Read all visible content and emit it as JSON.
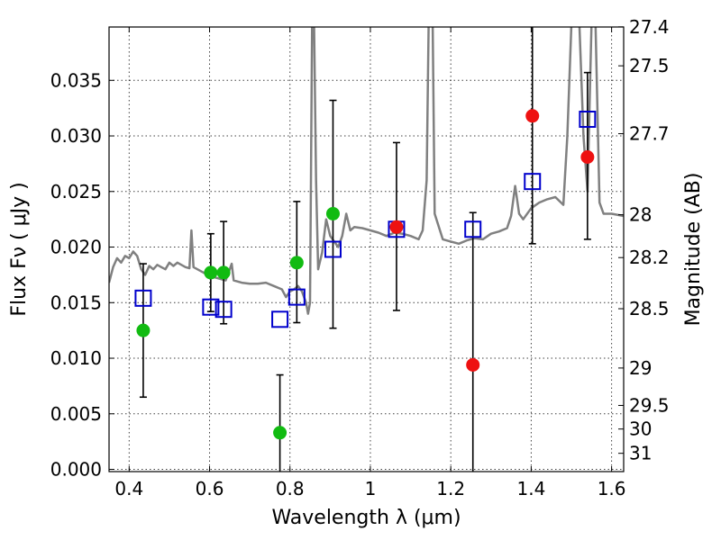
{
  "chart_data": {
    "type": "scatter",
    "xlabel": "Wavelength  λ (μm)",
    "ylabel": "Flux  Fν  ( μJy )",
    "y2label": "Magnitude (AB)",
    "xlim": [
      0.35,
      1.63
    ],
    "ylim": [
      -0.0002,
      0.0398
    ],
    "xticks": [
      0.4,
      0.6,
      0.8,
      1.0,
      1.2,
      1.4,
      1.6
    ],
    "xtick_labels": [
      "0.4",
      "0.6",
      "0.8",
      "1",
      "1.2",
      "1.4",
      "1.6"
    ],
    "yticks": [
      0.0,
      0.005,
      0.01,
      0.015,
      0.02,
      0.025,
      0.03,
      0.035
    ],
    "ytick_labels": [
      "0.000",
      "0.005",
      "0.010",
      "0.015",
      "0.020",
      "0.025",
      "0.030",
      "0.035"
    ],
    "mag_ticks": [
      {
        "label": "27.4",
        "mag": 27.4
      },
      {
        "label": "27.5",
        "mag": 27.5
      },
      {
        "label": "27.7",
        "mag": 27.7
      },
      {
        "label": "28",
        "mag": 28.0
      },
      {
        "label": "28.2",
        "mag": 28.2
      },
      {
        "label": "28.5",
        "mag": 28.5
      },
      {
        "label": "29",
        "mag": 29.0
      },
      {
        "label": "29.5",
        "mag": 29.5
      },
      {
        "label": "30",
        "mag": 30.0
      },
      {
        "label": "31",
        "mag": 31.0
      }
    ],
    "grid": true,
    "colors": {
      "spectrum": "#808080",
      "model": "#0000cc",
      "green": "#11bb11",
      "red": "#ee1111",
      "errorbar": "#000000"
    },
    "spectrum": {
      "name": "",
      "points": [
        [
          0.35,
          0.0168
        ],
        [
          0.36,
          0.0182
        ],
        [
          0.37,
          0.019
        ],
        [
          0.38,
          0.0186
        ],
        [
          0.39,
          0.0192
        ],
        [
          0.4,
          0.019
        ],
        [
          0.41,
          0.0196
        ],
        [
          0.42,
          0.0192
        ],
        [
          0.43,
          0.018
        ],
        [
          0.44,
          0.0175
        ],
        [
          0.45,
          0.0183
        ],
        [
          0.46,
          0.018
        ],
        [
          0.47,
          0.0184
        ],
        [
          0.48,
          0.0182
        ],
        [
          0.49,
          0.018
        ],
        [
          0.5,
          0.0186
        ],
        [
          0.51,
          0.0183
        ],
        [
          0.52,
          0.0186
        ],
        [
          0.53,
          0.0184
        ],
        [
          0.54,
          0.0182
        ],
        [
          0.55,
          0.0181
        ],
        [
          0.555,
          0.0215
        ],
        [
          0.56,
          0.0182
        ],
        [
          0.58,
          0.0178
        ],
        [
          0.6,
          0.0174
        ],
        [
          0.62,
          0.0172
        ],
        [
          0.64,
          0.017
        ],
        [
          0.655,
          0.0185
        ],
        [
          0.66,
          0.017
        ],
        [
          0.68,
          0.0168
        ],
        [
          0.7,
          0.0167
        ],
        [
          0.72,
          0.0167
        ],
        [
          0.74,
          0.0168
        ],
        [
          0.76,
          0.0165
        ],
        [
          0.78,
          0.0162
        ],
        [
          0.79,
          0.0155
        ],
        [
          0.8,
          0.016
        ],
        [
          0.81,
          0.0162
        ],
        [
          0.82,
          0.0165
        ],
        [
          0.83,
          0.016
        ],
        [
          0.84,
          0.015
        ],
        [
          0.845,
          0.014
        ],
        [
          0.85,
          0.015
        ],
        [
          0.855,
          0.04
        ],
        [
          0.86,
          0.04
        ],
        [
          0.865,
          0.026
        ],
        [
          0.87,
          0.018
        ],
        [
          0.88,
          0.0195
        ],
        [
          0.89,
          0.0225
        ],
        [
          0.9,
          0.021
        ],
        [
          0.91,
          0.0205
        ],
        [
          0.92,
          0.02
        ],
        [
          0.93,
          0.021
        ],
        [
          0.94,
          0.023
        ],
        [
          0.95,
          0.0215
        ],
        [
          0.96,
          0.0218
        ],
        [
          0.98,
          0.0217
        ],
        [
          1.0,
          0.0215
        ],
        [
          1.02,
          0.0213
        ],
        [
          1.04,
          0.021
        ],
        [
          1.06,
          0.0213
        ],
        [
          1.08,
          0.0212
        ],
        [
          1.1,
          0.021
        ],
        [
          1.12,
          0.0207
        ],
        [
          1.13,
          0.0215
        ],
        [
          1.14,
          0.026
        ],
        [
          1.145,
          0.04
        ],
        [
          1.155,
          0.04
        ],
        [
          1.16,
          0.023
        ],
        [
          1.18,
          0.0207
        ],
        [
          1.2,
          0.0205
        ],
        [
          1.22,
          0.0203
        ],
        [
          1.24,
          0.0206
        ],
        [
          1.26,
          0.0208
        ],
        [
          1.28,
          0.0207
        ],
        [
          1.3,
          0.0212
        ],
        [
          1.32,
          0.0214
        ],
        [
          1.34,
          0.0217
        ],
        [
          1.35,
          0.0228
        ],
        [
          1.36,
          0.0255
        ],
        [
          1.37,
          0.023
        ],
        [
          1.38,
          0.0225
        ],
        [
          1.4,
          0.0235
        ],
        [
          1.42,
          0.024
        ],
        [
          1.44,
          0.0243
        ],
        [
          1.46,
          0.0245
        ],
        [
          1.48,
          0.0238
        ],
        [
          1.49,
          0.03
        ],
        [
          1.5,
          0.04
        ],
        [
          1.52,
          0.04
        ],
        [
          1.53,
          0.03
        ],
        [
          1.54,
          0.025
        ],
        [
          1.55,
          0.04
        ],
        [
          1.56,
          0.04
        ],
        [
          1.57,
          0.024
        ],
        [
          1.58,
          0.023
        ],
        [
          1.6,
          0.023
        ],
        [
          1.63,
          0.0228
        ]
      ]
    },
    "model_points": {
      "x": [
        0.435,
        0.603,
        0.635,
        0.775,
        0.817,
        0.907,
        1.065,
        1.255,
        1.403,
        1.54
      ],
      "y": [
        0.0154,
        0.0146,
        0.0144,
        0.0135,
        0.0155,
        0.0198,
        0.0216,
        0.0216,
        0.0259,
        0.0315
      ]
    },
    "observed_green": {
      "x": [
        0.435,
        0.603,
        0.635,
        0.775,
        0.817,
        0.907
      ],
      "y": [
        0.0125,
        0.0177,
        0.0177,
        0.0033,
        0.0186,
        0.023
      ],
      "err_low": [
        0.0065,
        0.0142,
        0.0131,
        -0.0002,
        0.0132,
        0.0127
      ],
      "err_high": [
        0.0185,
        0.0212,
        0.0223,
        0.0085,
        0.0241,
        0.0332
      ]
    },
    "observed_red": {
      "x": [
        1.065,
        1.255,
        1.403,
        1.54
      ],
      "y": [
        0.0218,
        0.0094,
        0.0318,
        0.0281
      ],
      "err_low": [
        0.0143,
        -0.0002,
        0.0203,
        0.0207
      ],
      "err_high": [
        0.0294,
        0.0231,
        0.0398,
        0.0357
      ]
    }
  }
}
